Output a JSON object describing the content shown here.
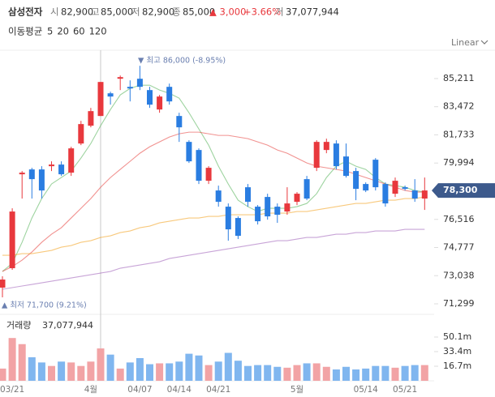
{
  "header": {
    "name": "삼성전자",
    "open_label": "시",
    "open": "82,900",
    "high_label": "고",
    "high": "85,000",
    "low_label": "저",
    "low": "82,900",
    "close_label": "종",
    "close": "85,000",
    "change": "▲ 3,000",
    "change_pct": "+3.66%",
    "volume_label": "거",
    "volume": "37,077,944"
  },
  "chart_data": {
    "type": "candlestick",
    "legend_title": "이동평균",
    "scale_mode": "Linear",
    "annotations": [
      "▼ 최고 86,000 (-8.95%)",
      "▲ 최저 71,700 (9.21%)"
    ],
    "categories": [
      null,
      "03/21",
      null,
      null,
      null,
      null,
      null,
      null,
      null,
      "4월",
      null,
      null,
      null,
      null,
      "04/07",
      null,
      null,
      null,
      "04/14",
      null,
      null,
      null,
      "04/21",
      null,
      null,
      null,
      null,
      null,
      null,
      null,
      "5월",
      null,
      null,
      null,
      null,
      null,
      null,
      "05/14",
      null,
      null,
      null,
      "05/21",
      null,
      null
    ],
    "open": [
      72300,
      73500,
      79300,
      79600,
      79600,
      79800,
      79900,
      79400,
      81200,
      82300,
      82900,
      84300,
      85200,
      84700,
      85200,
      84500,
      83300,
      84700,
      82900,
      81300,
      80800,
      78900,
      78300,
      77300,
      76600,
      78500,
      77300,
      77900,
      77300,
      77000,
      77600,
      79000,
      79700,
      80800,
      81200,
      80400,
      79500,
      78700,
      80200,
      78700,
      78100,
      78500,
      78300,
      77800
    ],
    "high": [
      73000,
      77200,
      79500,
      79700,
      79800,
      80100,
      80100,
      81000,
      82600,
      83400,
      85000,
      84400,
      85400,
      85100,
      86000,
      84700,
      84200,
      84900,
      83100,
      81400,
      80900,
      79800,
      78600,
      77500,
      76700,
      78700,
      77400,
      78100,
      77500,
      78500,
      78200,
      79200,
      81400,
      81500,
      81400,
      81200,
      79700,
      78800,
      80300,
      78800,
      79100,
      78600,
      79000,
      79100
    ],
    "low": [
      71700,
      73400,
      77800,
      77800,
      77800,
      79500,
      79200,
      79200,
      81100,
      82200,
      82900,
      83600,
      84500,
      83800,
      84500,
      83400,
      83100,
      83600,
      81300,
      80000,
      78700,
      78700,
      77300,
      75200,
      75300,
      77300,
      76200,
      76500,
      76300,
      76800,
      77400,
      77700,
      79500,
      80600,
      79600,
      79100,
      77700,
      78200,
      78300,
      77300,
      77900,
      78300,
      77600,
      77100
    ],
    "close": [
      72800,
      77000,
      79400,
      79000,
      78300,
      79900,
      79300,
      80900,
      82400,
      83200,
      85000,
      84100,
      85300,
      84600,
      84700,
      83600,
      84100,
      83800,
      82200,
      80100,
      78900,
      79700,
      77600,
      75900,
      75500,
      77600,
      76400,
      76700,
      76800,
      77500,
      78100,
      77800,
      81300,
      81300,
      79800,
      79200,
      78400,
      78300,
      78500,
      77500,
      78900,
      78400,
      77800,
      78300
    ],
    "last_label": "78,300",
    "up_color": "#e8383d",
    "down_color": "#2a7de1",
    "series": [
      {
        "name": "5",
        "color": "#4caf50",
        "values": [
          73300,
          73800,
          75100,
          76600,
          77800,
          78700,
          79100,
          79500,
          80300,
          81200,
          82300,
          83300,
          84200,
          84600,
          84800,
          84800,
          84500,
          84300,
          84000,
          83100,
          82100,
          81100,
          79800,
          78700,
          77700,
          77300,
          77000,
          77200,
          77200,
          77200,
          77300,
          77500,
          78100,
          79100,
          79800,
          80100,
          79800,
          79600,
          79100,
          78700,
          78600,
          78500,
          78300,
          78200
        ]
      },
      {
        "name": "20",
        "color": "#e53935",
        "values": [
          73300,
          73600,
          74000,
          74500,
          75100,
          75600,
          76000,
          76600,
          77200,
          77800,
          78500,
          79100,
          79600,
          80100,
          80600,
          81000,
          81300,
          81600,
          81800,
          81900,
          81900,
          81800,
          81700,
          81700,
          81600,
          81500,
          81300,
          81100,
          80800,
          80600,
          80300,
          80000,
          79800,
          79700,
          79600,
          79500,
          79300,
          79100,
          78900,
          78700,
          78500,
          78300,
          78200,
          78200
        ]
      },
      {
        "name": "60",
        "color": "#f39c12",
        "values": [
          74300,
          74300,
          74400,
          74400,
          74500,
          74600,
          74800,
          74900,
          75100,
          75200,
          75400,
          75500,
          75700,
          75800,
          76000,
          76100,
          76300,
          76400,
          76500,
          76600,
          76600,
          76700,
          76700,
          76800,
          76800,
          76800,
          76800,
          76900,
          76900,
          76900,
          77000,
          77000,
          77100,
          77200,
          77300,
          77400,
          77500,
          77500,
          77600,
          77700,
          77700,
          77800,
          77800,
          77900
        ]
      },
      {
        "name": "120",
        "color": "#9b59b6",
        "values": [
          72200,
          72300,
          72400,
          72500,
          72600,
          72700,
          72800,
          72900,
          73000,
          73100,
          73200,
          73300,
          73500,
          73600,
          73700,
          73800,
          73900,
          74100,
          74200,
          74300,
          74400,
          74500,
          74600,
          74700,
          74800,
          74900,
          75000,
          75100,
          75200,
          75200,
          75300,
          75400,
          75400,
          75500,
          75600,
          75600,
          75700,
          75700,
          75800,
          75800,
          75800,
          75900,
          75900,
          75900
        ]
      }
    ],
    "ylim": [
      70800,
      86960
    ],
    "yticks": [
      {
        "value": 71299,
        "label": "71,299"
      },
      {
        "value": 73038,
        "label": "73,038"
      },
      {
        "value": 74777,
        "label": "74,777"
      },
      {
        "value": 76516,
        "label": "76,516"
      },
      {
        "value": 79994,
        "label": "79,994"
      },
      {
        "value": 81733,
        "label": "81,733"
      },
      {
        "value": 83472,
        "label": "83,472"
      },
      {
        "value": 85211,
        "label": "85,211"
      }
    ],
    "volume_title": "거래량",
    "volume_text": "37,077,944",
    "volume": [
      14,
      49,
      42,
      27,
      21,
      17,
      22,
      21,
      17,
      22,
      37.08,
      30,
      14,
      21,
      26,
      19,
      20,
      20,
      22,
      31,
      29,
      18,
      22,
      32,
      23,
      17,
      18,
      18,
      16,
      15,
      18,
      20,
      20,
      16,
      13,
      16,
      13,
      14,
      17,
      17,
      15,
      17,
      18,
      18
    ],
    "volume_ylim": [
      0,
      74.24
    ],
    "volume_ticks": [
      {
        "value": 16.7,
        "label": "16.7m"
      },
      {
        "value": 33.4,
        "label": "33.4m"
      },
      {
        "value": 50.1,
        "label": "50.1m"
      }
    ]
  }
}
